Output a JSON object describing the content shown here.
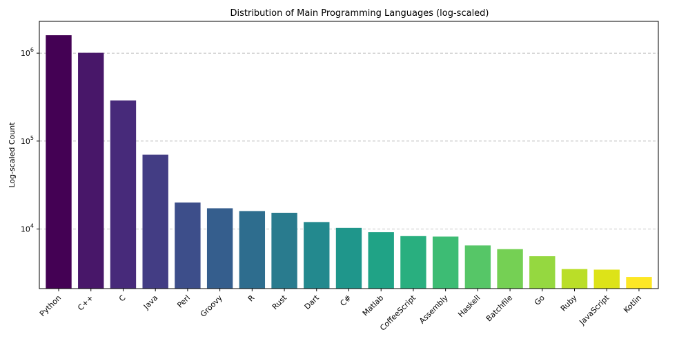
{
  "chart_data": {
    "type": "bar",
    "title": "Distribution of Main Programming Languages (log-scaled)",
    "xlabel": "",
    "ylabel": "Log-scaled Count",
    "yscale": "log",
    "ylim": [
      2100,
      2300000
    ],
    "yticks": [
      {
        "value": 10000,
        "base": "10",
        "exp": "4"
      },
      {
        "value": 100000,
        "base": "10",
        "exp": "5"
      },
      {
        "value": 1000000,
        "base": "10",
        "exp": "6"
      }
    ],
    "grid": "y-major-dashed",
    "legend": "none",
    "categories": [
      "Python",
      "C++",
      "C",
      "Java",
      "Perl",
      "Groovy",
      "R",
      "Rust",
      "Dart",
      "C#",
      "Matlab",
      "CoffeeScript",
      "Assembly",
      "Haskell",
      "Batchfile",
      "Go",
      "Ruby",
      "JavaScript",
      "Kotlin"
    ],
    "values": [
      1600000,
      1010000,
      290000,
      70000,
      20000,
      17200,
      16000,
      15300,
      12000,
      10300,
      9200,
      8300,
      8200,
      6500,
      5900,
      4900,
      3500,
      3450,
      2850
    ],
    "colors": [
      "#440154",
      "#481769",
      "#472a7a",
      "#433d84",
      "#3d4e8a",
      "#355e8d",
      "#2e6d8e",
      "#297b8e",
      "#23898e",
      "#1f968b",
      "#20a386",
      "#29af7f",
      "#3dbc74",
      "#56c667",
      "#75d054",
      "#95d840",
      "#bade28",
      "#dde318",
      "#fde725"
    ]
  }
}
